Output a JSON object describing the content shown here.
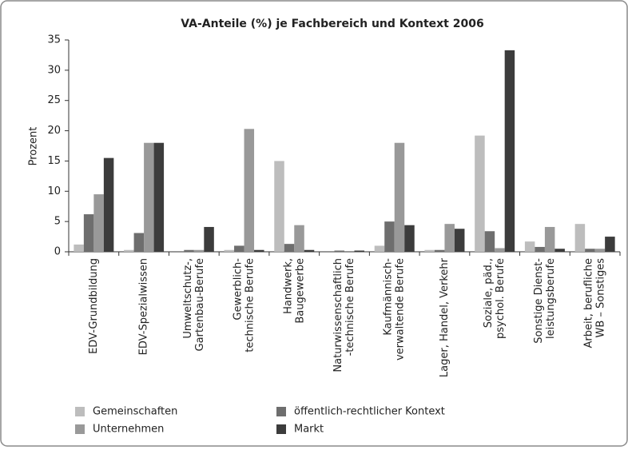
{
  "chart_data": {
    "type": "bar",
    "title": "VA-Anteile (%) je Fachbereich und Kontext 2006",
    "ylabel": "Prozent",
    "categories": [
      [
        "EDV-Grundbildung"
      ],
      [
        "EDV-Spezialwissen"
      ],
      [
        "Umweltschutz-,",
        "Gartenbau-Berufe"
      ],
      [
        "Gewerblich-",
        "technische Berufe"
      ],
      [
        "Handwerk,",
        "Baugewerbe"
      ],
      [
        "Naturwissenschaftlich",
        "-technische Berufe"
      ],
      [
        "Kaufmännisch-",
        "verwaltende Berufe"
      ],
      [
        "Lager, Handel, Verkehr"
      ],
      [
        "Soziale, päd.,",
        "psychol. Berufe"
      ],
      [
        "Sonstige Dienst-",
        "leistungsberufe"
      ],
      [
        "Arbeit, berufliche",
        "WB – Sonstiges"
      ]
    ],
    "series": [
      {
        "name": "Gemeinschaften",
        "color": "#bdbdbd",
        "values": [
          1.2,
          0.3,
          0,
          0.3,
          15,
          0,
          1,
          0.3,
          19.2,
          1.7,
          4.6
        ]
      },
      {
        "name": "öffentlich-rechtlicher Kontext",
        "color": "#6e6e6e",
        "values": [
          6.2,
          3.1,
          0.3,
          1,
          1.3,
          0.2,
          5,
          0.3,
          3.4,
          0.8,
          0.5
        ]
      },
      {
        "name": "Unternehmen",
        "color": "#999999",
        "values": [
          9.5,
          18,
          0.3,
          20.3,
          4.4,
          0,
          18,
          4.6,
          0.6,
          4.1,
          0.5
        ]
      },
      {
        "name": "Markt",
        "color": "#3c3c3c",
        "values": [
          15.5,
          18,
          4.1,
          0.3,
          0.3,
          0.2,
          4.4,
          3.8,
          33.3,
          0.5,
          2.5
        ]
      }
    ],
    "ylim": [
      0,
      35
    ],
    "yticks": [
      0,
      5,
      10,
      15,
      20,
      25,
      30,
      35
    ],
    "grid": false
  }
}
